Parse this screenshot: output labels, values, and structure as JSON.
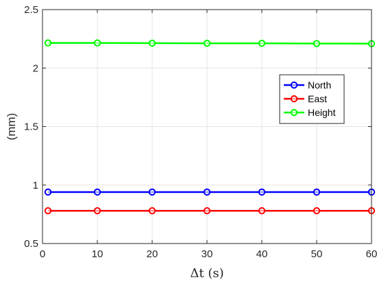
{
  "chart_data": {
    "type": "line",
    "title": "",
    "xlabel": "Δt (s)",
    "ylabel": "(mm)",
    "x": [
      1,
      10,
      20,
      30,
      40,
      50,
      60
    ],
    "xlim": [
      0,
      60
    ],
    "ylim": [
      0.5,
      2.5
    ],
    "xticks": [
      0,
      10,
      20,
      30,
      40,
      50,
      60
    ],
    "yticks": [
      0.5,
      1,
      1.5,
      2,
      2.5
    ],
    "xtick_labels": [
      "0",
      "10",
      "20",
      "30",
      "40",
      "50",
      "60"
    ],
    "ytick_labels": [
      "0.5",
      "1",
      "1.5",
      "2",
      "2.5"
    ],
    "grid": true,
    "legend_position": "right",
    "series": [
      {
        "name": "North",
        "color": "#0000ff",
        "values": [
          0.94,
          0.94,
          0.94,
          0.94,
          0.94,
          0.94,
          0.94
        ]
      },
      {
        "name": "East",
        "color": "#ff0000",
        "values": [
          0.78,
          0.78,
          0.78,
          0.78,
          0.78,
          0.78,
          0.78
        ]
      },
      {
        "name": "Height",
        "color": "#00ff00",
        "values": [
          2.215,
          2.215,
          2.213,
          2.212,
          2.212,
          2.21,
          2.209
        ]
      }
    ]
  }
}
